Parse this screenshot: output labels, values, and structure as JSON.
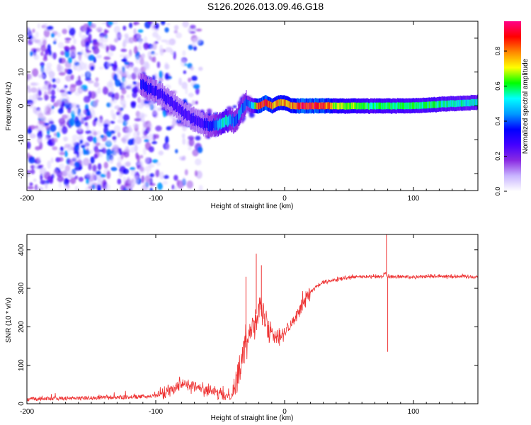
{
  "title": "S126.2026.013.09.46.G18",
  "colors": {
    "snr_line": "#ee3333",
    "colormap": [
      "#ffffff",
      "#c9b5ff",
      "#8a2be2",
      "#4400ff",
      "#0000ff",
      "#0099ff",
      "#00ffff",
      "#00ff00",
      "#ffff00",
      "#ff8800",
      "#ff0000",
      "#ff0088"
    ]
  },
  "chart_data": [
    {
      "type": "heatmap",
      "name": "spectrogram",
      "title": "S126.2026.013.09.46.G18",
      "xlabel": "Height of straight line (km)",
      "ylabel": "Frequency (Hz)",
      "xlim": [
        -200,
        150
      ],
      "ylim": [
        -25,
        25
      ],
      "xticks": [
        -200,
        -100,
        0,
        100
      ],
      "yticks": [
        -20,
        -10,
        0,
        10,
        20
      ],
      "colorbar": {
        "label": "Normalized spectral amplitude",
        "range": [
          0,
          0.97
        ],
        "ticks": [
          0.0,
          0.2,
          0.4,
          0.6,
          0.8
        ]
      },
      "ridge": {
        "description_points_x": [
          -110,
          -95,
          -85,
          -75,
          -65,
          -55,
          -48,
          -42,
          -38,
          -35,
          -30,
          -25,
          -20,
          -15,
          -10,
          -5,
          0,
          5,
          10,
          20,
          30,
          40,
          60,
          70,
          80,
          100,
          120,
          150
        ],
        "frequency_hz": [
          6,
          3,
          0,
          -3,
          -5,
          -6,
          -5,
          -4,
          -5,
          -2,
          1,
          0,
          0,
          1,
          0,
          1,
          1,
          0,
          0,
          0,
          0,
          0,
          0,
          0,
          0,
          0,
          0.5,
          1
        ],
        "amplitude": [
          0.35,
          0.3,
          0.3,
          0.3,
          0.3,
          0.4,
          0.55,
          0.5,
          0.4,
          0.45,
          0.4,
          0.5,
          0.95,
          0.9,
          0.85,
          0.8,
          0.85,
          0.8,
          0.95,
          0.95,
          0.9,
          0.7,
          0.65,
          0.6,
          0.6,
          0.6,
          0.6,
          0.55
        ]
      }
    },
    {
      "type": "line",
      "name": "snr",
      "xlabel": "Height of straight line (km)",
      "ylabel": "SNR (10 * v/v)",
      "xlim": [
        -200,
        150
      ],
      "ylim": [
        0,
        440
      ],
      "xticks": [
        -200,
        -100,
        0,
        100
      ],
      "yticks": [
        0,
        100,
        200,
        300,
        400
      ],
      "series": [
        {
          "name": "SNR",
          "x": [
            -200,
            -180,
            -160,
            -140,
            -120,
            -100,
            -90,
            -80,
            -70,
            -60,
            -50,
            -45,
            -40,
            -35,
            -30,
            -25,
            -20,
            -15,
            -10,
            -5,
            0,
            5,
            10,
            15,
            20,
            25,
            30,
            40,
            50,
            60,
            70,
            75,
            78,
            80,
            82,
            90,
            100,
            120,
            150
          ],
          "y": [
            10,
            12,
            12,
            14,
            15,
            18,
            35,
            55,
            45,
            35,
            25,
            20,
            30,
            90,
            160,
            210,
            250,
            220,
            190,
            175,
            185,
            200,
            240,
            270,
            290,
            305,
            315,
            322,
            328,
            330,
            330,
            330,
            340,
            330,
            330,
            330,
            330,
            332,
            330
          ]
        }
      ],
      "spikes": [
        {
          "x": -22,
          "y": 390
        },
        {
          "x": -18,
          "y": 360
        },
        {
          "x": -30,
          "y": 330
        },
        {
          "x": 79,
          "y": 440
        },
        {
          "x": 80,
          "y": 135
        }
      ]
    }
  ]
}
